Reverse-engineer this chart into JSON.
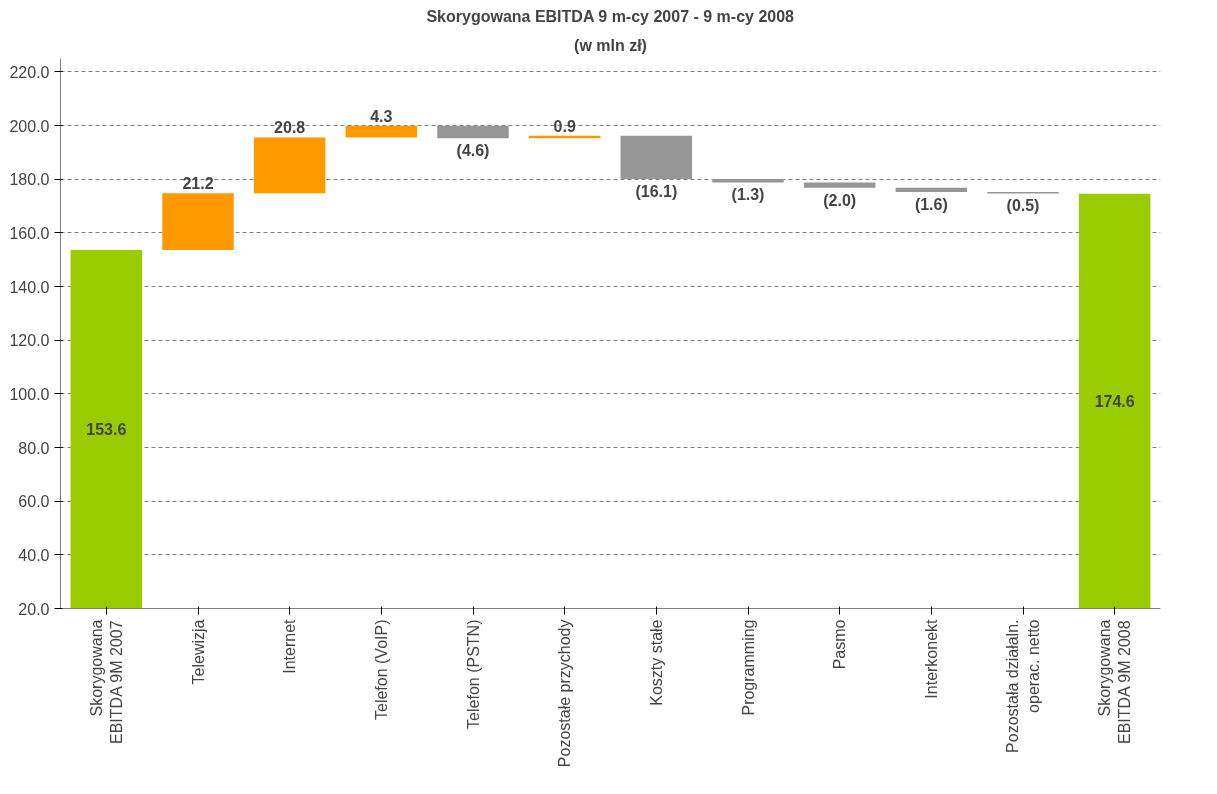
{
  "chart_data": {
    "type": "bar",
    "title": "Skorygowana EBITDA 9 m-cy 2007 - 9 m-cy 2008",
    "subtitle": "(w mln zł)",
    "categories": [
      "Skorygowana\nEBITDA 9M 2007",
      "Telewizja",
      "Internet",
      "Telefon (VoIP)",
      "Telefon (PSTN)",
      "Pozostałe przychody",
      "Koszty stałe",
      "Programming",
      "Pasmo",
      "Interkonekt",
      "Pozostała działaln.\noperac. netto",
      "Skorygowana\nEBITDA 9M 2008"
    ],
    "values": [
      153.6,
      21.2,
      20.8,
      4.3,
      -4.6,
      0.9,
      -16.1,
      -1.3,
      -2.0,
      -1.6,
      -0.5,
      174.6
    ],
    "base": [
      0,
      153.6,
      174.8,
      195.6,
      199.9,
      195.3,
      196.2,
      180.1,
      178.8,
      176.8,
      175.2,
      0
    ],
    "colors": [
      "#99cc00",
      "#ff9900",
      "#ff9900",
      "#ff9900",
      "#969696",
      "#ff9900",
      "#969696",
      "#969696",
      "#969696",
      "#969696",
      "#969696",
      "#99cc00"
    ],
    "value_labels": [
      "153.6",
      "21.2",
      "20.8",
      "4.3",
      "(4.6)",
      "0.9",
      "(16.1)",
      "(1.3)",
      "(2.0)",
      "(1.6)",
      "(0.5)",
      "174.6"
    ],
    "ylim": [
      20,
      225
    ],
    "yticks": [
      {
        "value": 20,
        "label": "20.0"
      },
      {
        "value": 40,
        "label": "40.0"
      },
      {
        "value": 60,
        "label": "60.0"
      },
      {
        "value": 80,
        "label": "80.0"
      },
      {
        "value": 100,
        "label": "100.0"
      },
      {
        "value": 120,
        "label": "120.0"
      },
      {
        "value": 140,
        "label": "140.0"
      },
      {
        "value": 160,
        "label": "160.0"
      },
      {
        "value": 180,
        "label": "180.0"
      },
      {
        "value": 200,
        "label": "200.0"
      },
      {
        "value": 220,
        "label": "220.0"
      }
    ],
    "grid": "y"
  }
}
